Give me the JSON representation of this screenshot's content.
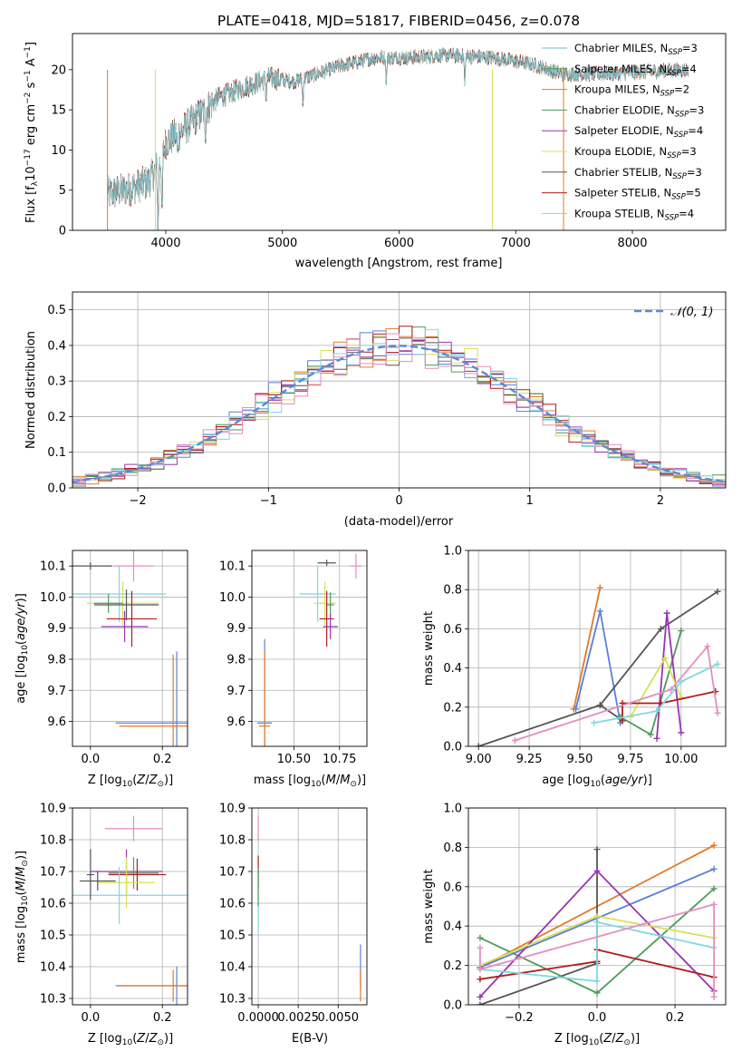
{
  "colors": {
    "chabrier_miles": "#5b7fd8",
    "salpeter_miles": "#8fc0d8",
    "kroupa_miles": "#e07b2a",
    "chabrier_elodie": "#4f9a5a",
    "salpeter_elodie": "#9a34b2",
    "kroupa_elodie": "#d7e05a",
    "chabrier_stelib": "#555555",
    "salpeter_stelib": "#b01c1c",
    "kroupa_stelib": "#7ed8e0",
    "pink": "#e38ec0",
    "normal": "#5b8ad8",
    "grid": "#b0b0b0"
  },
  "chart_data": [
    {
      "id": "spectrum",
      "type": "line",
      "title": "PLATE=0418, MJD=51817, FIBERID=0456, z=0.078",
      "xlabel": "wavelength [Angstrom, rest frame]",
      "ylabel": "Flux [f",
      "xlim": [
        3200,
        8800
      ],
      "ylim": [
        0,
        24.5
      ],
      "xticks": [
        "4000",
        "5000",
        "6000",
        "7000",
        "8000"
      ],
      "yticks": [
        "0",
        "5",
        "10",
        "15",
        "20"
      ],
      "legend_position": "right",
      "legend": [
        {
          "name": "Chabrier MILES, N",
          "sub": "SSP",
          "eq": "=3",
          "color": "#7ab0c8"
        },
        {
          "name": "Salpeter MILES, N",
          "sub": "SSP",
          "eq": "=4",
          "color": "#4f9a5a"
        },
        {
          "name": "Kroupa MILES, N",
          "sub": "SSP",
          "eq": "=2",
          "color": "#e07b2a"
        },
        {
          "name": "Chabrier ELODIE, N",
          "sub": "SSP",
          "eq": "=3",
          "color": "#4f9a5a"
        },
        {
          "name": "Salpeter ELODIE, N",
          "sub": "SSP",
          "eq": "=4",
          "color": "#9a34b2"
        },
        {
          "name": "Kroupa ELODIE, N",
          "sub": "SSP",
          "eq": "=3",
          "color": "#d7e05a"
        },
        {
          "name": "Chabrier STELIB, N",
          "sub": "SSP",
          "eq": "=3",
          "color": "#555555"
        },
        {
          "name": "Salpeter STELIB, N",
          "sub": "SSP",
          "eq": "=5",
          "color": "#b01c1c"
        },
        {
          "name": "Kroupa STELIB, N",
          "sub": "SSP",
          "eq": "=4",
          "color": "#7ed8e0"
        }
      ],
      "continuum": [
        [
          3500,
          4.5
        ],
        [
          3700,
          5.2
        ],
        [
          3850,
          6.0
        ],
        [
          3950,
          8.5
        ],
        [
          4000,
          11.0
        ],
        [
          4150,
          12.5
        ],
        [
          4300,
          14.5
        ],
        [
          4450,
          16.5
        ],
        [
          4700,
          18.0
        ],
        [
          4900,
          19.0
        ],
        [
          5100,
          18.5
        ],
        [
          5300,
          19.5
        ],
        [
          5500,
          20.5
        ],
        [
          5800,
          21.5
        ],
        [
          6100,
          21.5
        ],
        [
          6400,
          21.8
        ],
        [
          6800,
          21.5
        ],
        [
          7100,
          20.8
        ],
        [
          7400,
          19.5
        ],
        [
          7800,
          19.5
        ],
        [
          8200,
          19.8
        ],
        [
          8480,
          20.0
        ]
      ],
      "absorption_lines": [
        [
          3933,
          8.5
        ],
        [
          3968,
          8.5
        ],
        [
          4102,
          3.0
        ],
        [
          4340,
          2.5
        ],
        [
          4861,
          2.5
        ],
        [
          5175,
          3.5
        ],
        [
          5890,
          3.0
        ],
        [
          6563,
          3.5
        ]
      ]
    },
    {
      "id": "residuals",
      "type": "line",
      "xlabel": "(data-model)/error",
      "ylabel": "Normed distribution",
      "xlim": [
        -2.5,
        2.5
      ],
      "ylim": [
        0,
        0.55
      ],
      "xticks": [
        "−2",
        "−1",
        "0",
        "1",
        "2"
      ],
      "yticks": [
        "0.0",
        "0.1",
        "0.2",
        "0.3",
        "0.4",
        "0.5"
      ],
      "legend_position": "top-right",
      "legend_label": "𝒩(0, 1)",
      "bin_width": 0.1,
      "series_colors": [
        "#5b7fd8",
        "#e07b2a",
        "#4f9a5a",
        "#9a34b2",
        "#d7e05a",
        "#555555",
        "#b01c1c",
        "#7ed8e0",
        "#e38ec0"
      ]
    },
    {
      "id": "age-vs-Z",
      "type": "scatter",
      "xlabel": "Z [log",
      "ylabel": "age  [log",
      "xlim": [
        -0.05,
        0.27
      ],
      "ylim": [
        9.52,
        10.15
      ],
      "xticks": [
        "0.0",
        "0.2"
      ],
      "yticks": [
        "9.6",
        "9.7",
        "9.8",
        "9.9",
        "10.0",
        "10.1"
      ],
      "points": [
        {
          "x": 0.0,
          "y": 10.1,
          "xerr": 0.06,
          "yerr": 0.012,
          "color": "#555555"
        },
        {
          "x": 0.12,
          "y": 10.1,
          "xerr": 0.055,
          "yerr": 0.05,
          "color": "#e38ec0"
        },
        {
          "x": 0.08,
          "y": 10.01,
          "xerr": 0.13,
          "yerr": 0.09,
          "color": "#7ed8e0"
        },
        {
          "x": 0.09,
          "y": 9.98,
          "xerr": 0.1,
          "yerr": 0.07,
          "color": "#d7e05a"
        },
        {
          "x": 0.05,
          "y": 9.98,
          "xerr": 0.04,
          "yerr": 0.03,
          "color": "#4f9a5a"
        },
        {
          "x": 0.1,
          "y": 9.975,
          "xerr": 0.09,
          "yerr": 0.05,
          "color": "#555555"
        },
        {
          "x": 0.115,
          "y": 9.93,
          "xerr": 0.07,
          "yerr": 0.09,
          "color": "#b01c1c"
        },
        {
          "x": 0.095,
          "y": 9.905,
          "xerr": 0.065,
          "yerr": 0.05,
          "color": "#9a34b2"
        },
        {
          "x": 0.24,
          "y": 9.595,
          "xerr": 0.17,
          "yerr": 0.23,
          "color": "#5b7fd8"
        },
        {
          "x": 0.23,
          "y": 9.585,
          "xerr": 0.15,
          "yerr": 0.23,
          "color": "#e07b2a"
        }
      ]
    },
    {
      "id": "age-vs-mass",
      "type": "scatter",
      "xlabel": "mass [log",
      "ylabel": "",
      "xlim": [
        10.27,
        10.9
      ],
      "ylim": [
        9.52,
        10.15
      ],
      "xticks": [
        "10.50",
        "10.75"
      ],
      "yticks": [
        "9.6",
        "9.7",
        "9.8",
        "9.9",
        "10.0",
        "10.1"
      ],
      "points": [
        {
          "x": 10.68,
          "y": 10.11,
          "xerr": 0.05,
          "yerr": 0.01,
          "color": "#555555"
        },
        {
          "x": 10.84,
          "y": 10.1,
          "xerr": 0.03,
          "yerr": 0.04,
          "color": "#e38ec0"
        },
        {
          "x": 10.63,
          "y": 10.01,
          "xerr": 0.1,
          "yerr": 0.09,
          "color": "#7ed8e0"
        },
        {
          "x": 10.67,
          "y": 9.98,
          "xerr": 0.06,
          "yerr": 0.07,
          "color": "#d7e05a"
        },
        {
          "x": 10.7,
          "y": 9.975,
          "xerr": 0.02,
          "yerr": 0.04,
          "color": "#4f9a5a"
        },
        {
          "x": 10.68,
          "y": 9.93,
          "xerr": 0.04,
          "yerr": 0.09,
          "color": "#b01c1c"
        },
        {
          "x": 10.7,
          "y": 9.905,
          "xerr": 0.04,
          "yerr": 0.04,
          "color": "#9a34b2"
        },
        {
          "x": 10.34,
          "y": 9.595,
          "xerr": 0.04,
          "yerr": 0.27,
          "color": "#5b7fd8"
        },
        {
          "x": 10.34,
          "y": 9.585,
          "xerr": 0.03,
          "yerr": 0.24,
          "color": "#e07b2a"
        }
      ]
    },
    {
      "id": "mass-weight-vs-age",
      "type": "line",
      "xlabel": "age  [log",
      "ylabel": "mass weight",
      "xlim": [
        8.95,
        10.22
      ],
      "ylim": [
        0,
        1.0
      ],
      "xticks": [
        "9.00",
        "9.25",
        "9.50",
        "9.75",
        "10.00"
      ],
      "yticks": [
        "0.0",
        "0.2",
        "0.4",
        "0.6",
        "0.8",
        "1.0"
      ],
      "series": [
        {
          "color": "#e07b2a",
          "x": [
            9.47,
            9.6
          ],
          "y": [
            0.19,
            0.81
          ]
        },
        {
          "color": "#5b7fd8",
          "x": [
            9.48,
            9.6,
            9.7
          ],
          "y": [
            0.19,
            0.69,
            0.12
          ]
        },
        {
          "color": "#555555",
          "x": [
            9.0,
            9.6,
            9.9,
            10.18
          ],
          "y": [
            0.0,
            0.21,
            0.6,
            0.79
          ]
        },
        {
          "color": "#555555",
          "x": [
            9.6,
            9.7
          ],
          "y": [
            0.21,
            0.14
          ]
        },
        {
          "color": "#4f9a5a",
          "x": [
            9.7,
            9.85,
            10.0
          ],
          "y": [
            0.15,
            0.06,
            0.59
          ]
        },
        {
          "color": "#9a34b2",
          "x": [
            9.88,
            9.93,
            10.0
          ],
          "y": [
            0.04,
            0.68,
            0.07
          ]
        },
        {
          "color": "#d7e05a",
          "x": [
            9.75,
            9.92,
            10.0
          ],
          "y": [
            0.15,
            0.45,
            0.25
          ]
        },
        {
          "color": "#b01c1c",
          "x": [
            9.71,
            9.71,
            9.9,
            10.17
          ],
          "y": [
            0.13,
            0.22,
            0.22,
            0.28
          ]
        },
        {
          "color": "#7ed8e0",
          "x": [
            9.57,
            9.88,
            10.0,
            10.18
          ],
          "y": [
            0.12,
            0.18,
            0.33,
            0.42
          ]
        },
        {
          "color": "#e38ec0",
          "x": [
            9.18,
            9.95,
            10.13,
            10.18
          ],
          "y": [
            0.03,
            0.29,
            0.51,
            0.17
          ]
        }
      ]
    },
    {
      "id": "mass-vs-Z",
      "type": "scatter",
      "xlabel": "Z [log",
      "ylabel": "mass [log",
      "xlim": [
        -0.05,
        0.27
      ],
      "ylim": [
        10.28,
        10.9
      ],
      "xticks": [
        "0.0",
        "0.2"
      ],
      "yticks": [
        "10.3",
        "10.4",
        "10.5",
        "10.6",
        "10.7",
        "10.8",
        "10.9"
      ],
      "points": [
        {
          "x": 0.12,
          "y": 10.835,
          "xerr": 0.08,
          "yerr": 0.04,
          "color": "#e38ec0"
        },
        {
          "x": 0.1,
          "y": 10.7,
          "xerr": 0.1,
          "yerr": 0.07,
          "color": "#9a34b2"
        },
        {
          "x": 0.12,
          "y": 10.695,
          "xerr": 0.07,
          "yerr": 0.05,
          "color": "#4f9a5a"
        },
        {
          "x": 0.13,
          "y": 10.69,
          "xerr": 0.08,
          "yerr": 0.05,
          "color": "#b01c1c"
        },
        {
          "x": 0.1,
          "y": 10.665,
          "xerr": 0.08,
          "yerr": 0.08,
          "color": "#d7e05a"
        },
        {
          "x": 0.02,
          "y": 10.67,
          "xerr": 0.05,
          "yerr": 0.03,
          "color": "#555555"
        },
        {
          "x": 0.08,
          "y": 10.625,
          "xerr": 0.2,
          "yerr": 0.09,
          "color": "#7ed8e0"
        },
        {
          "x": 0.0,
          "y": 10.69,
          "xerr": 0.01,
          "yerr": 0.08,
          "color": "#555555"
        },
        {
          "x": 0.24,
          "y": 10.34,
          "xerr": 0.17,
          "yerr": 0.06,
          "color": "#5b7fd8"
        },
        {
          "x": 0.23,
          "y": 10.34,
          "xerr": 0.15,
          "yerr": 0.05,
          "color": "#e07b2a"
        }
      ]
    },
    {
      "id": "mass-vs-EBV",
      "type": "scatter",
      "xlabel": "E(B-V)",
      "ylabel": "",
      "xlim": [
        -0.0004,
        0.0068
      ],
      "ylim": [
        10.28,
        10.9
      ],
      "xticks": [
        "0.0000",
        "0.0025",
        "0.0050"
      ],
      "yticks": [
        "10.3",
        "10.4",
        "10.5",
        "10.6",
        "10.7",
        "10.8",
        "10.9"
      ],
      "points": [
        {
          "x": 0.0,
          "y": 10.835,
          "xerr": 0,
          "yerr": 0.04,
          "color": "#e38ec0"
        },
        {
          "x": 0.0,
          "y": 10.7,
          "xerr": 0,
          "yerr": 0.05,
          "color": "#b01c1c"
        },
        {
          "x": 0.0,
          "y": 10.6,
          "xerr": 0,
          "yerr": 0.1,
          "color": "#7ed8e0"
        },
        {
          "x": 0.0,
          "y": 10.65,
          "xerr": 0,
          "yerr": 0.06,
          "color": "#4f9a5a"
        },
        {
          "x": 0.0064,
          "y": 10.4,
          "xerr": 0,
          "yerr": 0.07,
          "color": "#5b7fd8"
        },
        {
          "x": 0.0064,
          "y": 10.34,
          "xerr": 0,
          "yerr": 0.05,
          "color": "#e07b2a"
        }
      ]
    },
    {
      "id": "mass-weight-vs-Z",
      "type": "line",
      "xlabel": "Z [log",
      "ylabel": "mass weight",
      "xlim": [
        -0.33,
        0.33
      ],
      "ylim": [
        0,
        1.0
      ],
      "xticks": [
        "−0.2",
        "0.0",
        "0.2"
      ],
      "yticks": [
        "0.0",
        "0.2",
        "0.4",
        "0.6",
        "0.8",
        "1.0"
      ],
      "series": [
        {
          "color": "#e07b2a",
          "x": [
            -0.3,
            0.3
          ],
          "y": [
            0.19,
            0.81
          ]
        },
        {
          "color": "#5b7fd8",
          "x": [
            -0.3,
            0.3
          ],
          "y": [
            0.19,
            0.69
          ]
        },
        {
          "color": "#555555",
          "x": [
            -0.3,
            0.0,
            0.0
          ],
          "y": [
            0.0,
            0.21,
            0.79
          ]
        },
        {
          "color": "#4f9a5a",
          "x": [
            -0.3,
            0.0,
            0.3
          ],
          "y": [
            0.34,
            0.06,
            0.59
          ]
        },
        {
          "color": "#9a34b2",
          "x": [
            -0.3,
            0.0,
            0.3
          ],
          "y": [
            0.04,
            0.68,
            0.07
          ]
        },
        {
          "color": "#d7e05a",
          "x": [
            -0.3,
            0.0,
            0.3
          ],
          "y": [
            0.2,
            0.45,
            0.34
          ]
        },
        {
          "color": "#b01c1c",
          "x": [
            -0.3,
            0.0,
            0.0,
            0.3
          ],
          "y": [
            0.13,
            0.22,
            0.28,
            0.14
          ]
        },
        {
          "color": "#7ed8e0",
          "x": [
            -0.3,
            0.0,
            0.0,
            0.3
          ],
          "y": [
            0.18,
            0.12,
            0.42,
            0.29
          ]
        },
        {
          "color": "#e38ec0",
          "x": [
            -0.3,
            -0.3,
            0.3,
            0.3
          ],
          "y": [
            0.29,
            0.18,
            0.51,
            0.04
          ]
        }
      ]
    }
  ]
}
